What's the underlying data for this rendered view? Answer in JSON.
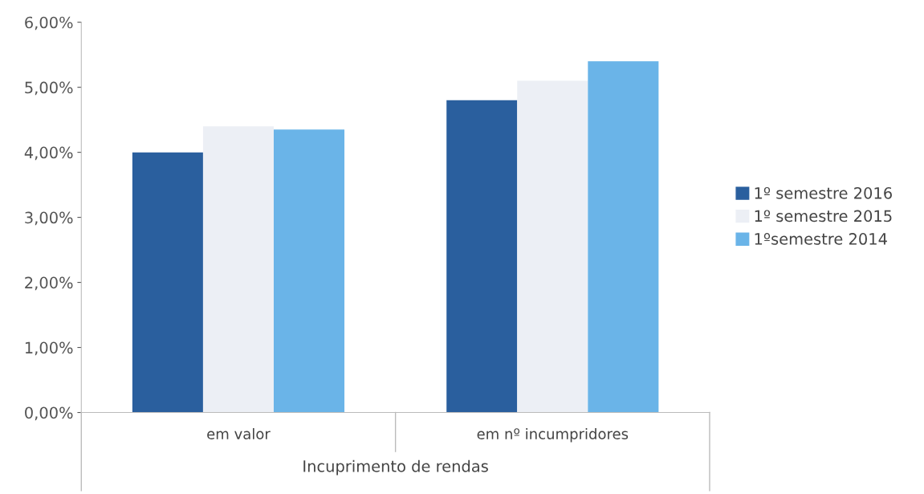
{
  "chart_data": {
    "type": "bar",
    "xlabel": "Incuprimento de rendas",
    "categories": [
      "em valor",
      "em nº incumpridores"
    ],
    "series": [
      {
        "name": "1º semestre 2016",
        "color": "#2a5f9e",
        "values": [
          4.0,
          4.8
        ]
      },
      {
        "name": "1º semestre 2015",
        "color": "#eceff5",
        "values": [
          4.4,
          5.1
        ]
      },
      {
        "name": "1ºsemestre 2014",
        "color": "#6ab4e8",
        "values": [
          4.35,
          5.4
        ]
      }
    ],
    "ylim": [
      0,
      6
    ],
    "yticks": [
      {
        "value": 0,
        "label": "0,00%"
      },
      {
        "value": 1,
        "label": "1,00%"
      },
      {
        "value": 2,
        "label": "2,00%"
      },
      {
        "value": 3,
        "label": "3,00%"
      },
      {
        "value": 4,
        "label": "4,00%"
      },
      {
        "value": 5,
        "label": "5,00%"
      },
      {
        "value": 6,
        "label": "6,00%"
      }
    ],
    "grid": false,
    "legend": "right"
  }
}
